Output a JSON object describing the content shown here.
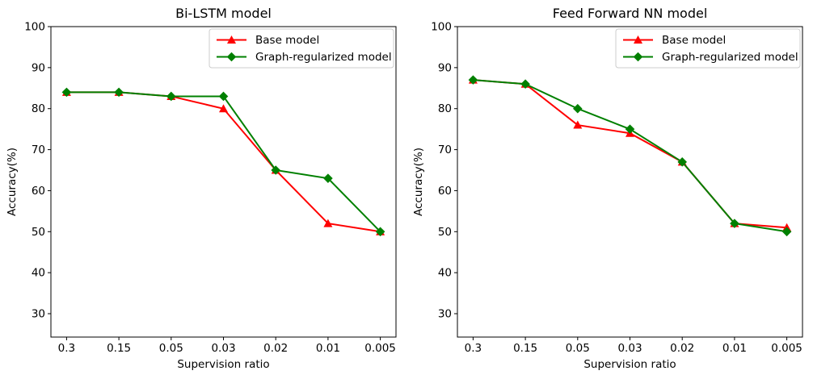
{
  "figure": {
    "background": "#ffffff",
    "text_color": "#000000",
    "spine_color": "#000000",
    "legend_border_color": "#cccccc",
    "legend_background": "#ffffff"
  },
  "chart_data": [
    {
      "type": "line",
      "title": "Bi-LSTM model",
      "xlabel": "Supervision ratio",
      "ylabel": "Accuracy(%)",
      "categories": [
        "0.3",
        "0.15",
        "0.05",
        "0.03",
        "0.02",
        "0.01",
        "0.005"
      ],
      "yticks": [
        30,
        40,
        50,
        60,
        70,
        80,
        90,
        100
      ],
      "ylim": [
        24.3,
        100
      ],
      "grid": false,
      "legend_position": "upper right",
      "series": [
        {
          "name": "Base model",
          "color": "#ff0000",
          "marker": "triangle",
          "values": [
            84,
            84,
            83,
            80,
            65,
            52,
            50
          ]
        },
        {
          "name": "Graph-regularized model",
          "color": "#008000",
          "marker": "diamond",
          "values": [
            84,
            84,
            83,
            83,
            65,
            63,
            50
          ]
        }
      ]
    },
    {
      "type": "line",
      "title": "Feed Forward NN model",
      "xlabel": "Supervision ratio",
      "ylabel": "Accuracy(%)",
      "categories": [
        "0.3",
        "0.15",
        "0.05",
        "0.03",
        "0.02",
        "0.01",
        "0.005"
      ],
      "yticks": [
        30,
        40,
        50,
        60,
        70,
        80,
        90,
        100
      ],
      "ylim": [
        24.3,
        100
      ],
      "grid": false,
      "legend_position": "upper right",
      "series": [
        {
          "name": "Base model",
          "color": "#ff0000",
          "marker": "triangle",
          "values": [
            87,
            86,
            76,
            74,
            67,
            52,
            51
          ]
        },
        {
          "name": "Graph-regularized model",
          "color": "#008000",
          "marker": "diamond",
          "values": [
            87,
            86,
            80,
            75,
            67,
            52,
            50
          ]
        }
      ]
    }
  ]
}
